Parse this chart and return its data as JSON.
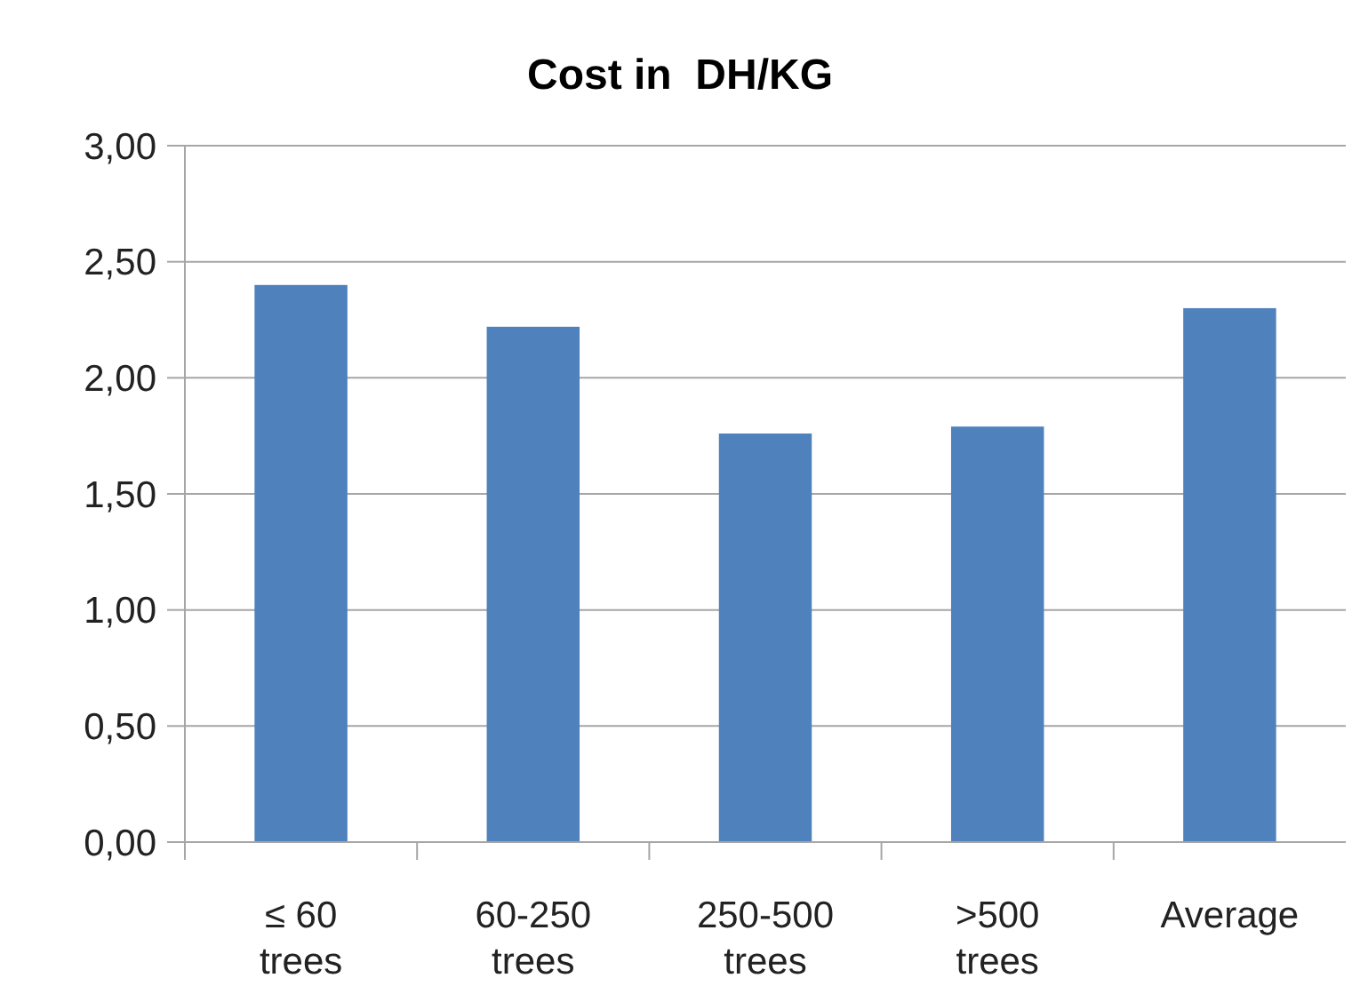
{
  "chart_data": {
    "type": "bar",
    "title": "Cost in  DH/KG",
    "categories": [
      "≤ 60\ntrees",
      "60-250\ntrees",
      "250-500\ntrees",
      ">500\ntrees",
      "Average"
    ],
    "values": [
      2.4,
      2.22,
      1.76,
      1.79,
      2.3
    ],
    "color": "#4f81bd",
    "ylim": [
      0,
      3
    ],
    "yticks": [
      {
        "value": 0,
        "label": "0,00"
      },
      {
        "value": 0.5,
        "label": "0,50"
      },
      {
        "value": 1,
        "label": "1,00"
      },
      {
        "value": 1.5,
        "label": "1,50"
      },
      {
        "value": 2,
        "label": "2,00"
      },
      {
        "value": 2.5,
        "label": "2,50"
      },
      {
        "value": 3,
        "label": "3,00"
      }
    ],
    "grid": "y"
  }
}
